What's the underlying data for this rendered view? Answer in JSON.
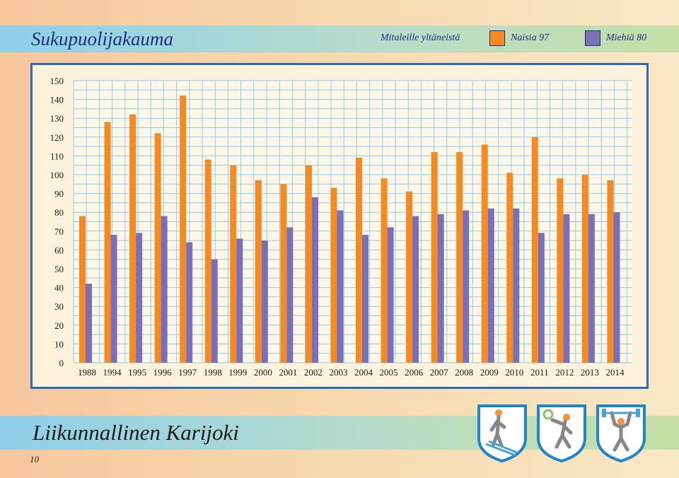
{
  "header": {
    "title": "Sukupuolijakauma",
    "legend_caption": "Mitaleille yltäneistä",
    "legend": [
      {
        "label": "Naisia 97",
        "color": "#f58a22"
      },
      {
        "label": "Miehiä 80",
        "color": "#7b6fb5"
      }
    ]
  },
  "chart_data": {
    "type": "bar",
    "categories": [
      "1988",
      "1994",
      "1995",
      "1996",
      "1997",
      "1998",
      "1999",
      "2000",
      "2001",
      "2002",
      "2003",
      "2004",
      "2005",
      "2006",
      "2007",
      "2008",
      "2009",
      "2010",
      "2011",
      "2012",
      "2013",
      "2014"
    ],
    "series": [
      {
        "name": "Naisia 97",
        "color": "#f58a22",
        "values": [
          78,
          128,
          132,
          122,
          142,
          108,
          105,
          97,
          95,
          105,
          93,
          109,
          98,
          91,
          112,
          112,
          116,
          101,
          120,
          98,
          100,
          97
        ]
      },
      {
        "name": "Miehiä 80",
        "color": "#7b6fb5",
        "values": [
          42,
          68,
          69,
          78,
          64,
          55,
          66,
          65,
          72,
          88,
          81,
          68,
          72,
          78,
          79,
          81,
          82,
          82,
          69,
          79,
          79,
          80
        ]
      }
    ],
    "yticks": [
      "0",
      "10",
      "20",
      "30",
      "40",
      "50",
      "60",
      "70",
      "80",
      "90",
      "100",
      "110",
      "120",
      "130",
      "140",
      "150"
    ],
    "ylim": [
      0,
      150
    ],
    "grid": true
  },
  "footer": {
    "title": "Liikunnallinen Karijoki",
    "page_number": "10",
    "badges": [
      "skier-icon",
      "tennis-player-icon",
      "weightlifter-icon"
    ]
  }
}
